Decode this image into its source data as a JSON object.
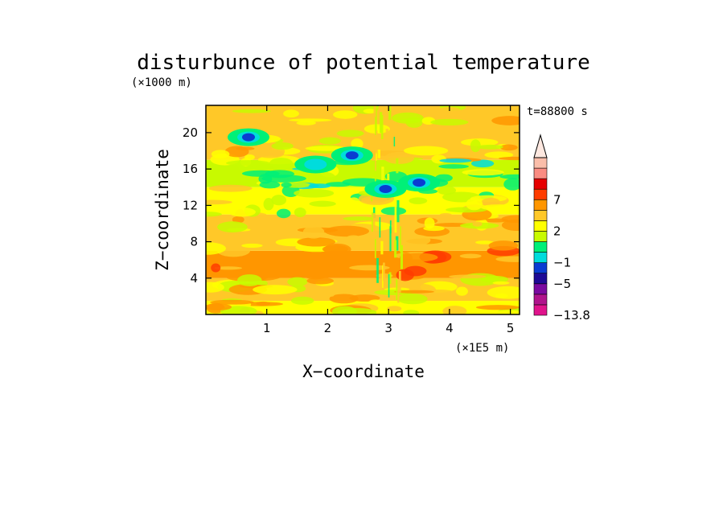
{
  "chart_data": {
    "type": "heatmap",
    "title": "disturbunce of potential temperature",
    "y_unit_label": "(×1000 m)",
    "x_unit_label": "(×1E5 m)",
    "xlabel": "X−coordinate",
    "ylabel": "Z−coordinate",
    "time_label": "t=88800 s",
    "xlim": [
      0,
      5.15
    ],
    "ylim": [
      0,
      23
    ],
    "x_ticks": [
      {
        "value": 1,
        "label": "1"
      },
      {
        "value": 2,
        "label": "2"
      },
      {
        "value": 3,
        "label": "3"
      },
      {
        "value": 4,
        "label": "4"
      },
      {
        "value": 5,
        "label": "5"
      }
    ],
    "y_ticks": [
      {
        "value": 4,
        "label": "4"
      },
      {
        "value": 8,
        "label": "8"
      },
      {
        "value": 12,
        "label": "12"
      },
      {
        "value": 16,
        "label": "16"
      },
      {
        "value": 20,
        "label": "20"
      }
    ],
    "colorbar": {
      "levels": [
        -13.8,
        -9,
        -7,
        -5,
        -3,
        -1,
        0,
        1,
        2,
        3,
        5,
        7,
        9
      ],
      "colors": [
        "#e0148c",
        "#b0148c",
        "#7a0aa0",
        "#1e0a96",
        "#0a3cd2",
        "#00dcdc",
        "#00f078",
        "#c8fa00",
        "#ffff00",
        "#ffc828",
        "#ff9600",
        "#ff3c00",
        "#e60000",
        "#fa8c82",
        "#fabeaa"
      ],
      "labels": [
        {
          "value": -13.8,
          "label": "−13.8"
        },
        {
          "value": -5,
          "label": "−5"
        },
        {
          "value": -1,
          "label": "−1"
        },
        {
          "value": 2,
          "label": "2"
        },
        {
          "value": 7,
          "label": "7"
        }
      ],
      "extend": "max"
    },
    "field_description": [
      {
        "x_range": [
          0,
          5.15
        ],
        "y_range": [
          0,
          1.5
        ],
        "value": 1.5
      },
      {
        "x_range": [
          0,
          5.15
        ],
        "y_range": [
          1.5,
          4
        ],
        "value": 2.5
      },
      {
        "x_range": [
          0,
          5.15
        ],
        "y_range": [
          4,
          7
        ],
        "value": 4
      },
      {
        "x_range": [
          0,
          5.15
        ],
        "y_range": [
          7,
          11
        ],
        "value": 2.5
      },
      {
        "x_range": [
          0,
          5.15
        ],
        "y_range": [
          11,
          14
        ],
        "value": 1.5
      },
      {
        "x_range": [
          0,
          5.15
        ],
        "y_range": [
          14,
          17
        ],
        "value": 0.5
      },
      {
        "x_range": [
          0,
          5.15
        ],
        "y_range": [
          17,
          23
        ],
        "value": 2
      }
    ],
    "features": [
      {
        "x": 0.7,
        "y": 19.5,
        "value": -4,
        "label": "cold core (upper left)"
      },
      {
        "x": 2.4,
        "y": 17.5,
        "value": -4,
        "label": "cold core"
      },
      {
        "x": 3.5,
        "y": 14.5,
        "value": -4,
        "label": "cold core"
      },
      {
        "x": 2.95,
        "y": 13.8,
        "value": -4,
        "label": "cold core"
      },
      {
        "x": 1.8,
        "y": 16.5,
        "value": -2,
        "label": "cold patch"
      }
    ]
  }
}
